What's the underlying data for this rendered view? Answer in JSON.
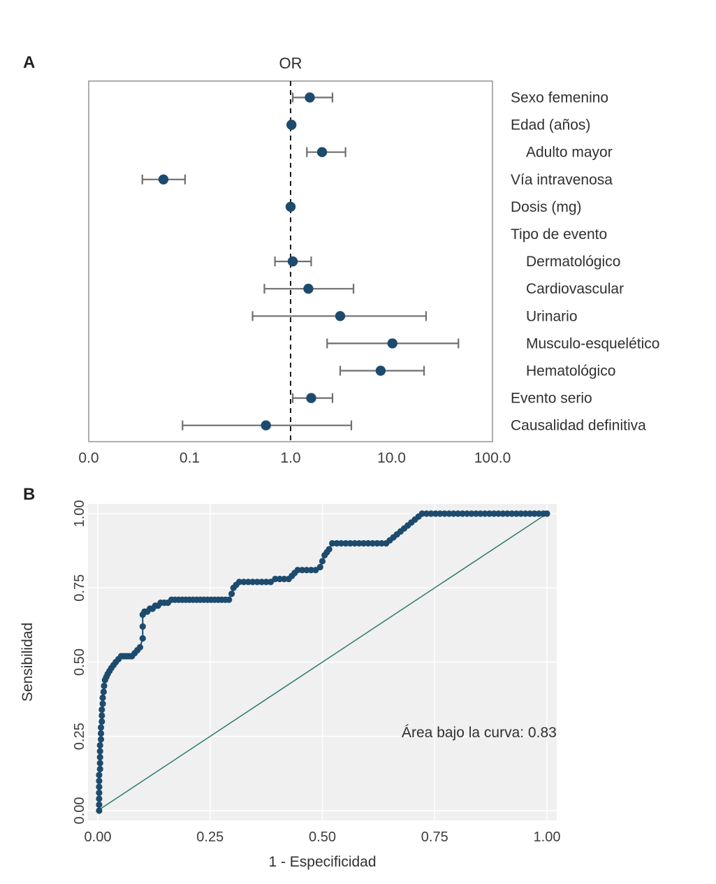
{
  "panels": {
    "a": {
      "letter": "A"
    },
    "b": {
      "letter": "B"
    }
  },
  "colors": {
    "dot": "#1d4b6e",
    "ci": "#6f6f6f",
    "reference": "#1a1a1a",
    "box": "#8c8c8c",
    "diagonal": "#2a7a6e",
    "roc_panel_bg": "#f0f0f0",
    "grid": "#ffffff",
    "tick_text": "#3d3d3d",
    "label_text": "#303030"
  },
  "chart_data": [
    {
      "type": "scatter",
      "variant": "forest",
      "title": "OR",
      "x_scale": "log10",
      "x_ticks": [
        {
          "label": "0.0",
          "value": 0.01
        },
        {
          "label": "0.1",
          "value": 0.1
        },
        {
          "label": "1.0",
          "value": 1
        },
        {
          "label": "10.0",
          "value": 10
        },
        {
          "label": "100.0",
          "value": 100
        }
      ],
      "reference_line": 1,
      "rows": [
        {
          "label": "Sexo femenino",
          "indent": 0,
          "or": 1.55,
          "lo": 1.05,
          "hi": 2.6
        },
        {
          "label": "Edad (años)",
          "indent": 0,
          "or": 1.02,
          "lo": 0.99,
          "hi": 1.06
        },
        {
          "label": "Adulto mayor",
          "indent": 1,
          "or": 2.05,
          "lo": 1.45,
          "hi": 3.5
        },
        {
          "label": "Vía intravenosa",
          "indent": 0,
          "or": 0.055,
          "lo": 0.034,
          "hi": 0.09
        },
        {
          "label": "Dosis (mg)",
          "indent": 0,
          "or": 1.0,
          "lo": 0.99,
          "hi": 1.01
        },
        {
          "label": "Tipo de evento",
          "indent": 0,
          "or": null,
          "lo": null,
          "hi": null
        },
        {
          "label": "Dermatológico",
          "indent": 1,
          "or": 1.05,
          "lo": 0.7,
          "hi": 1.6
        },
        {
          "label": "Cardiovascular",
          "indent": 1,
          "or": 1.5,
          "lo": 0.55,
          "hi": 4.2
        },
        {
          "label": "Urinario",
          "indent": 1,
          "or": 3.1,
          "lo": 0.42,
          "hi": 22
        },
        {
          "label": "Musculo-esquelético",
          "indent": 1,
          "or": 10.2,
          "lo": 2.3,
          "hi": 46
        },
        {
          "label": "Hematológico",
          "indent": 1,
          "or": 7.8,
          "lo": 3.1,
          "hi": 21
        },
        {
          "label": "Evento serio",
          "indent": 0,
          "or": 1.6,
          "lo": 1.05,
          "hi": 2.6
        },
        {
          "label": "Causalidad definitiva",
          "indent": 0,
          "or": 0.57,
          "lo": 0.085,
          "hi": 4.0
        }
      ]
    },
    {
      "type": "scatter",
      "variant": "roc",
      "xlabel": "1 - Especificidad",
      "ylabel": "Sensibilidad",
      "annotation": "Área bajo la curva: 0.83",
      "auc": 0.83,
      "xlim": [
        0,
        1
      ],
      "ylim": [
        0,
        1
      ],
      "diagonal": true,
      "x_ticks": [
        {
          "label": "0.00",
          "value": 0
        },
        {
          "label": "0.25",
          "value": 0.25
        },
        {
          "label": "0.50",
          "value": 0.5
        },
        {
          "label": "0.75",
          "value": 0.75
        },
        {
          "label": "1.00",
          "value": 1
        }
      ],
      "y_ticks": [
        {
          "label": "0.00",
          "value": 0
        },
        {
          "label": "0.25",
          "value": 0.25
        },
        {
          "label": "0.50",
          "value": 0.5
        },
        {
          "label": "0.75",
          "value": 0.75
        },
        {
          "label": "1.00",
          "value": 1
        }
      ],
      "points": [
        [
          0.003,
          0.0
        ],
        [
          0.003,
          0.02
        ],
        [
          0.003,
          0.04
        ],
        [
          0.003,
          0.06
        ],
        [
          0.003,
          0.08
        ],
        [
          0.003,
          0.1
        ],
        [
          0.003,
          0.12
        ],
        [
          0.005,
          0.14
        ],
        [
          0.005,
          0.16
        ],
        [
          0.005,
          0.18
        ],
        [
          0.005,
          0.2
        ],
        [
          0.005,
          0.22
        ],
        [
          0.007,
          0.24
        ],
        [
          0.007,
          0.26
        ],
        [
          0.007,
          0.28
        ],
        [
          0.009,
          0.3
        ],
        [
          0.009,
          0.32
        ],
        [
          0.009,
          0.34
        ],
        [
          0.011,
          0.36
        ],
        [
          0.011,
          0.38
        ],
        [
          0.013,
          0.4
        ],
        [
          0.014,
          0.42
        ],
        [
          0.016,
          0.44
        ],
        [
          0.019,
          0.45
        ],
        [
          0.022,
          0.46
        ],
        [
          0.026,
          0.47
        ],
        [
          0.03,
          0.48
        ],
        [
          0.035,
          0.49
        ],
        [
          0.04,
          0.5
        ],
        [
          0.046,
          0.51
        ],
        [
          0.052,
          0.52
        ],
        [
          0.058,
          0.52
        ],
        [
          0.064,
          0.52
        ],
        [
          0.07,
          0.52
        ],
        [
          0.076,
          0.52
        ],
        [
          0.082,
          0.53
        ],
        [
          0.088,
          0.54
        ],
        [
          0.094,
          0.55
        ],
        [
          0.1,
          0.58
        ],
        [
          0.1,
          0.62
        ],
        [
          0.1,
          0.66
        ],
        [
          0.104,
          0.67
        ],
        [
          0.11,
          0.67
        ],
        [
          0.116,
          0.68
        ],
        [
          0.122,
          0.68
        ],
        [
          0.128,
          0.69
        ],
        [
          0.134,
          0.69
        ],
        [
          0.14,
          0.7
        ],
        [
          0.148,
          0.7
        ],
        [
          0.156,
          0.7
        ],
        [
          0.164,
          0.71
        ],
        [
          0.172,
          0.71
        ],
        [
          0.18,
          0.71
        ],
        [
          0.188,
          0.71
        ],
        [
          0.196,
          0.71
        ],
        [
          0.204,
          0.71
        ],
        [
          0.212,
          0.71
        ],
        [
          0.22,
          0.71
        ],
        [
          0.228,
          0.71
        ],
        [
          0.236,
          0.71
        ],
        [
          0.244,
          0.71
        ],
        [
          0.252,
          0.71
        ],
        [
          0.26,
          0.71
        ],
        [
          0.268,
          0.71
        ],
        [
          0.276,
          0.71
        ],
        [
          0.284,
          0.71
        ],
        [
          0.292,
          0.71
        ],
        [
          0.298,
          0.73
        ],
        [
          0.302,
          0.75
        ],
        [
          0.308,
          0.76
        ],
        [
          0.315,
          0.77
        ],
        [
          0.325,
          0.77
        ],
        [
          0.335,
          0.77
        ],
        [
          0.345,
          0.77
        ],
        [
          0.355,
          0.77
        ],
        [
          0.365,
          0.77
        ],
        [
          0.375,
          0.77
        ],
        [
          0.385,
          0.77
        ],
        [
          0.395,
          0.78
        ],
        [
          0.405,
          0.78
        ],
        [
          0.415,
          0.78
        ],
        [
          0.425,
          0.78
        ],
        [
          0.432,
          0.79
        ],
        [
          0.438,
          0.8
        ],
        [
          0.445,
          0.81
        ],
        [
          0.455,
          0.81
        ],
        [
          0.465,
          0.81
        ],
        [
          0.475,
          0.81
        ],
        [
          0.485,
          0.81
        ],
        [
          0.495,
          0.82
        ],
        [
          0.5,
          0.84
        ],
        [
          0.505,
          0.86
        ],
        [
          0.51,
          0.87
        ],
        [
          0.515,
          0.88
        ],
        [
          0.522,
          0.9
        ],
        [
          0.532,
          0.9
        ],
        [
          0.542,
          0.9
        ],
        [
          0.552,
          0.9
        ],
        [
          0.562,
          0.9
        ],
        [
          0.572,
          0.9
        ],
        [
          0.582,
          0.9
        ],
        [
          0.592,
          0.9
        ],
        [
          0.602,
          0.9
        ],
        [
          0.612,
          0.9
        ],
        [
          0.622,
          0.9
        ],
        [
          0.632,
          0.9
        ],
        [
          0.642,
          0.9
        ],
        [
          0.65,
          0.91
        ],
        [
          0.658,
          0.92
        ],
        [
          0.666,
          0.93
        ],
        [
          0.674,
          0.94
        ],
        [
          0.682,
          0.95
        ],
        [
          0.69,
          0.96
        ],
        [
          0.698,
          0.97
        ],
        [
          0.706,
          0.98
        ],
        [
          0.714,
          0.99
        ],
        [
          0.722,
          1.0
        ],
        [
          0.732,
          1.0
        ],
        [
          0.742,
          1.0
        ],
        [
          0.752,
          1.0
        ],
        [
          0.762,
          1.0
        ],
        [
          0.772,
          1.0
        ],
        [
          0.782,
          1.0
        ],
        [
          0.792,
          1.0
        ],
        [
          0.802,
          1.0
        ],
        [
          0.812,
          1.0
        ],
        [
          0.822,
          1.0
        ],
        [
          0.832,
          1.0
        ],
        [
          0.842,
          1.0
        ],
        [
          0.852,
          1.0
        ],
        [
          0.862,
          1.0
        ],
        [
          0.872,
          1.0
        ],
        [
          0.882,
          1.0
        ],
        [
          0.892,
          1.0
        ],
        [
          0.902,
          1.0
        ],
        [
          0.912,
          1.0
        ],
        [
          0.922,
          1.0
        ],
        [
          0.932,
          1.0
        ],
        [
          0.942,
          1.0
        ],
        [
          0.952,
          1.0
        ],
        [
          0.962,
          1.0
        ],
        [
          0.972,
          1.0
        ],
        [
          0.982,
          1.0
        ],
        [
          0.992,
          1.0
        ],
        [
          1.0,
          1.0
        ]
      ]
    }
  ]
}
